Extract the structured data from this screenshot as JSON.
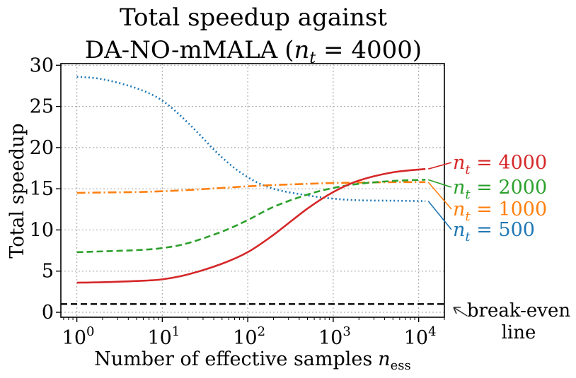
{
  "chart_data": {
    "type": "line",
    "title_line1": "Total speedup against",
    "title_line2": "DA-NO-mMALA",
    "title_formula": "(n_t = 4000)",
    "title_paren_open": "(",
    "title_n": "n",
    "title_sub": "t",
    "title_eq": " = 4000)",
    "xlabel": "Number of effective samples",
    "xlabel_var": "n",
    "xlabel_sub": "ess",
    "ylabel": "Total speedup",
    "xscale": "log",
    "xlim": [
      0.65,
      20000
    ],
    "ylim": [
      -0.6,
      30.2
    ],
    "grid": true,
    "x_ticks": [
      {
        "value": 1,
        "base": "10",
        "exp": "0"
      },
      {
        "value": 10,
        "base": "10",
        "exp": "1"
      },
      {
        "value": 100,
        "base": "10",
        "exp": "2"
      },
      {
        "value": 1000,
        "base": "10",
        "exp": "3"
      },
      {
        "value": 10000,
        "base": "10",
        "exp": "4"
      }
    ],
    "y_ticks": [
      {
        "value": 0,
        "label": "0"
      },
      {
        "value": 5,
        "label": "5"
      },
      {
        "value": 10,
        "label": "10"
      },
      {
        "value": 15,
        "label": "15"
      },
      {
        "value": 20,
        "label": "20"
      },
      {
        "value": 25,
        "label": "25"
      },
      {
        "value": 30,
        "label": "30"
      }
    ],
    "x": [
      1,
      2,
      5,
      10,
      20,
      50,
      100,
      200,
      500,
      1000,
      2000,
      5000,
      12000
    ],
    "series": [
      {
        "name": "n_t = 500",
        "label_var": "n",
        "label_sub": "t",
        "label_eq": " = 500",
        "color": "#1f77b4",
        "dash": "dotted",
        "values": [
          28.6,
          28.3,
          27.2,
          25.7,
          23.0,
          18.8,
          16.4,
          15.0,
          14.2,
          13.8,
          13.6,
          13.55,
          13.5
        ]
      },
      {
        "name": "n_t = 1000",
        "label_var": "n",
        "label_sub": "t",
        "label_eq": " = 1000",
        "color": "#ff7f0e",
        "dash": "dashdot",
        "values": [
          14.5,
          14.55,
          14.6,
          14.7,
          14.85,
          15.1,
          15.3,
          15.45,
          15.6,
          15.7,
          15.75,
          15.8,
          15.8
        ]
      },
      {
        "name": "n_t = 2000",
        "label_var": "n",
        "label_sub": "t",
        "label_eq": " = 2000",
        "color": "#2ca02c",
        "dash": "dashed",
        "values": [
          7.3,
          7.4,
          7.55,
          7.8,
          8.4,
          9.8,
          11.2,
          12.8,
          14.3,
          15.1,
          15.6,
          15.95,
          16.1
        ]
      },
      {
        "name": "n_t = 4000",
        "label_var": "n",
        "label_sub": "t",
        "label_eq": " = 4000",
        "color": "#d62728",
        "dash": "solid",
        "values": [
          3.6,
          3.65,
          3.8,
          4.0,
          4.6,
          5.9,
          7.3,
          9.4,
          12.6,
          14.6,
          16.0,
          17.0,
          17.4
        ]
      }
    ],
    "reference_line": {
      "value": 1,
      "color": "#000000",
      "dash": "dashed",
      "label_line1": "break-even",
      "label_line2": "line"
    }
  }
}
